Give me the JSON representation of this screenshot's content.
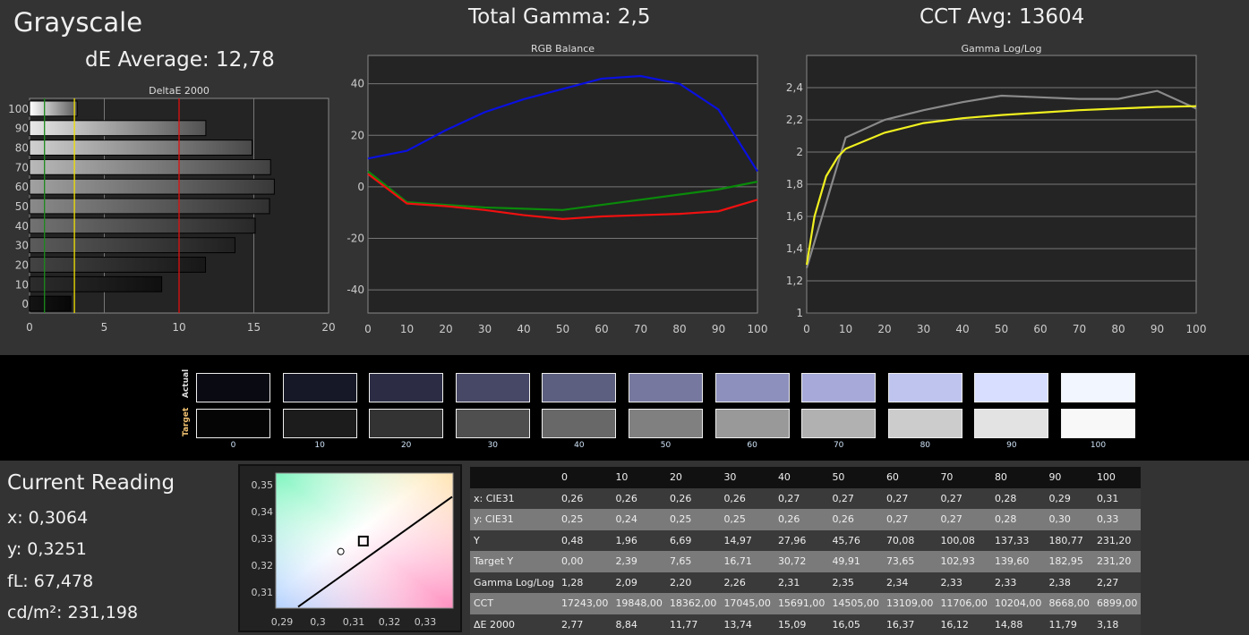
{
  "header": {
    "title": "Grayscale",
    "de_average": "dE Average: 12,78",
    "total_gamma": "Total Gamma: 2,5",
    "cct_avg": "CCT Avg: 13604"
  },
  "chart_data": [
    {
      "type": "bar",
      "title": "DeltaE 2000",
      "orientation": "horizontal",
      "categories": [
        "0",
        "10",
        "20",
        "30",
        "40",
        "50",
        "60",
        "70",
        "80",
        "90",
        "100"
      ],
      "values": [
        2.77,
        8.84,
        11.77,
        13.74,
        15.09,
        16.05,
        16.37,
        16.12,
        14.88,
        11.79,
        3.18
      ],
      "xlim": [
        0,
        20
      ],
      "xticks": [
        "0",
        "5",
        "10",
        "15",
        "20"
      ],
      "reference_lines": [
        {
          "value": 1,
          "color": "#1a8a1a"
        },
        {
          "value": 3,
          "color": "#f0e000"
        },
        {
          "value": 10,
          "color": "#e01010"
        }
      ],
      "grid": true
    },
    {
      "type": "line",
      "title": "RGB Balance",
      "x": [
        0,
        10,
        20,
        30,
        40,
        50,
        60,
        70,
        80,
        90,
        100
      ],
      "xlim": [
        0,
        100
      ],
      "ylim": [
        -49,
        51
      ],
      "yticks": [
        "-40",
        "-20",
        "0",
        "20",
        "40"
      ],
      "xticks": [
        "0",
        "10",
        "20",
        "30",
        "40",
        "50",
        "60",
        "70",
        "80",
        "90",
        "100"
      ],
      "grid": true,
      "series": [
        {
          "color": "#0a10e0",
          "values": [
            11,
            14,
            22,
            29,
            34,
            38,
            42,
            43,
            40,
            30,
            6
          ]
        },
        {
          "color": "#0a8a0a",
          "values": [
            6,
            -6,
            -7,
            -8,
            -8.5,
            -9,
            -7,
            -5,
            -3,
            -1,
            2
          ]
        },
        {
          "color": "#f01010",
          "values": [
            5,
            -6.5,
            -7.5,
            -9,
            -11,
            -12.5,
            -11.5,
            -11,
            -10.5,
            -9.5,
            -5
          ]
        }
      ]
    },
    {
      "type": "line",
      "title": "Gamma Log/Log",
      "xlim": [
        0,
        100
      ],
      "ylim": [
        1,
        2.6
      ],
      "yticks": [
        "1",
        "1,2",
        "1,4",
        "1,6",
        "1,8",
        "2",
        "2,2",
        "2,4"
      ],
      "xticks": [
        "0",
        "10",
        "20",
        "30",
        "40",
        "50",
        "60",
        "70",
        "80",
        "90",
        "100"
      ],
      "grid": true,
      "series": [
        {
          "color": "#8a8a8a",
          "x": [
            0,
            10,
            20,
            30,
            40,
            50,
            60,
            70,
            80,
            90,
            100
          ],
          "values": [
            1.28,
            2.09,
            2.2,
            2.26,
            2.31,
            2.35,
            2.34,
            2.33,
            2.33,
            2.38,
            2.27
          ]
        },
        {
          "color": "#f0f020",
          "x": [
            0,
            2,
            5,
            8,
            10,
            20,
            30,
            40,
            50,
            60,
            70,
            80,
            90,
            100
          ],
          "values": [
            1.3,
            1.6,
            1.85,
            1.97,
            2.02,
            2.12,
            2.18,
            2.21,
            2.23,
            2.245,
            2.26,
            2.27,
            2.28,
            2.285
          ]
        }
      ]
    },
    {
      "type": "scatter",
      "xlim": [
        0.28825,
        0.33775
      ],
      "ylim": [
        0.304,
        0.3543
      ],
      "xticks": [
        "0,29",
        "0,3",
        "0,31",
        "0,32",
        "0,33"
      ],
      "yticks": [
        "0,31",
        "0,32",
        "0,33",
        "0,34",
        "0,35"
      ],
      "measured": {
        "x": 0.3064,
        "y": 0.3251
      },
      "target": {
        "x": 0.3127,
        "y": 0.329
      },
      "planckian": [
        [
          0.2945,
          0.3045
        ],
        [
          0.3375,
          0.3455
        ]
      ]
    }
  ],
  "swatches": {
    "actual_label": "Actual",
    "target_label": "Target",
    "levels": [
      "0",
      "10",
      "20",
      "30",
      "40",
      "50",
      "60",
      "70",
      "80",
      "90",
      "100"
    ],
    "actual": [
      "#0a0b12",
      "#161827",
      "#2c2d45",
      "#474866",
      "#5d5f80",
      "#76789f",
      "#8d90bc",
      "#a7aad8",
      "#bfc4ef",
      "#d8deff",
      "#f2f7ff"
    ],
    "target": [
      "#050505",
      "#1c1c1c",
      "#333333",
      "#4f4f4f",
      "#686868",
      "#808080",
      "#999999",
      "#b1b1b1",
      "#cccccc",
      "#e3e3e3",
      "#f8f8f8"
    ]
  },
  "reading": {
    "title": "Current Reading",
    "x": "x: 0,3064",
    "y": "y: 0,3251",
    "fl": "fL: 67,478",
    "cdm2": "cd/m²: 231,198"
  },
  "table": {
    "columns": [
      "",
      "0",
      "10",
      "20",
      "30",
      "40",
      "50",
      "60",
      "70",
      "80",
      "90",
      "100"
    ],
    "rows": [
      [
        "x: CIE31",
        "0,26",
        "0,26",
        "0,26",
        "0,26",
        "0,27",
        "0,27",
        "0,27",
        "0,27",
        "0,28",
        "0,29",
        "0,31"
      ],
      [
        "y: CIE31",
        "0,25",
        "0,24",
        "0,25",
        "0,25",
        "0,26",
        "0,26",
        "0,27",
        "0,27",
        "0,28",
        "0,30",
        "0,33"
      ],
      [
        "Y",
        "0,48",
        "1,96",
        "6,69",
        "14,97",
        "27,96",
        "45,76",
        "70,08",
        "100,08",
        "137,33",
        "180,77",
        "231,20"
      ],
      [
        "Target Y",
        "0,00",
        "2,39",
        "7,65",
        "16,71",
        "30,72",
        "49,91",
        "73,65",
        "102,93",
        "139,60",
        "182,95",
        "231,20"
      ],
      [
        "Gamma Log/Log",
        "1,28",
        "2,09",
        "2,20",
        "2,26",
        "2,31",
        "2,35",
        "2,34",
        "2,33",
        "2,33",
        "2,38",
        "2,27"
      ],
      [
        "CCT",
        "17243,00",
        "19848,00",
        "18362,00",
        "17045,00",
        "15691,00",
        "14505,00",
        "13109,00",
        "11706,00",
        "10204,00",
        "8668,00",
        "6899,00"
      ],
      [
        "ΔE 2000",
        "2,77",
        "8,84",
        "11,77",
        "13,74",
        "15,09",
        "16,05",
        "16,37",
        "16,12",
        "14,88",
        "11,79",
        "3,18"
      ]
    ]
  }
}
